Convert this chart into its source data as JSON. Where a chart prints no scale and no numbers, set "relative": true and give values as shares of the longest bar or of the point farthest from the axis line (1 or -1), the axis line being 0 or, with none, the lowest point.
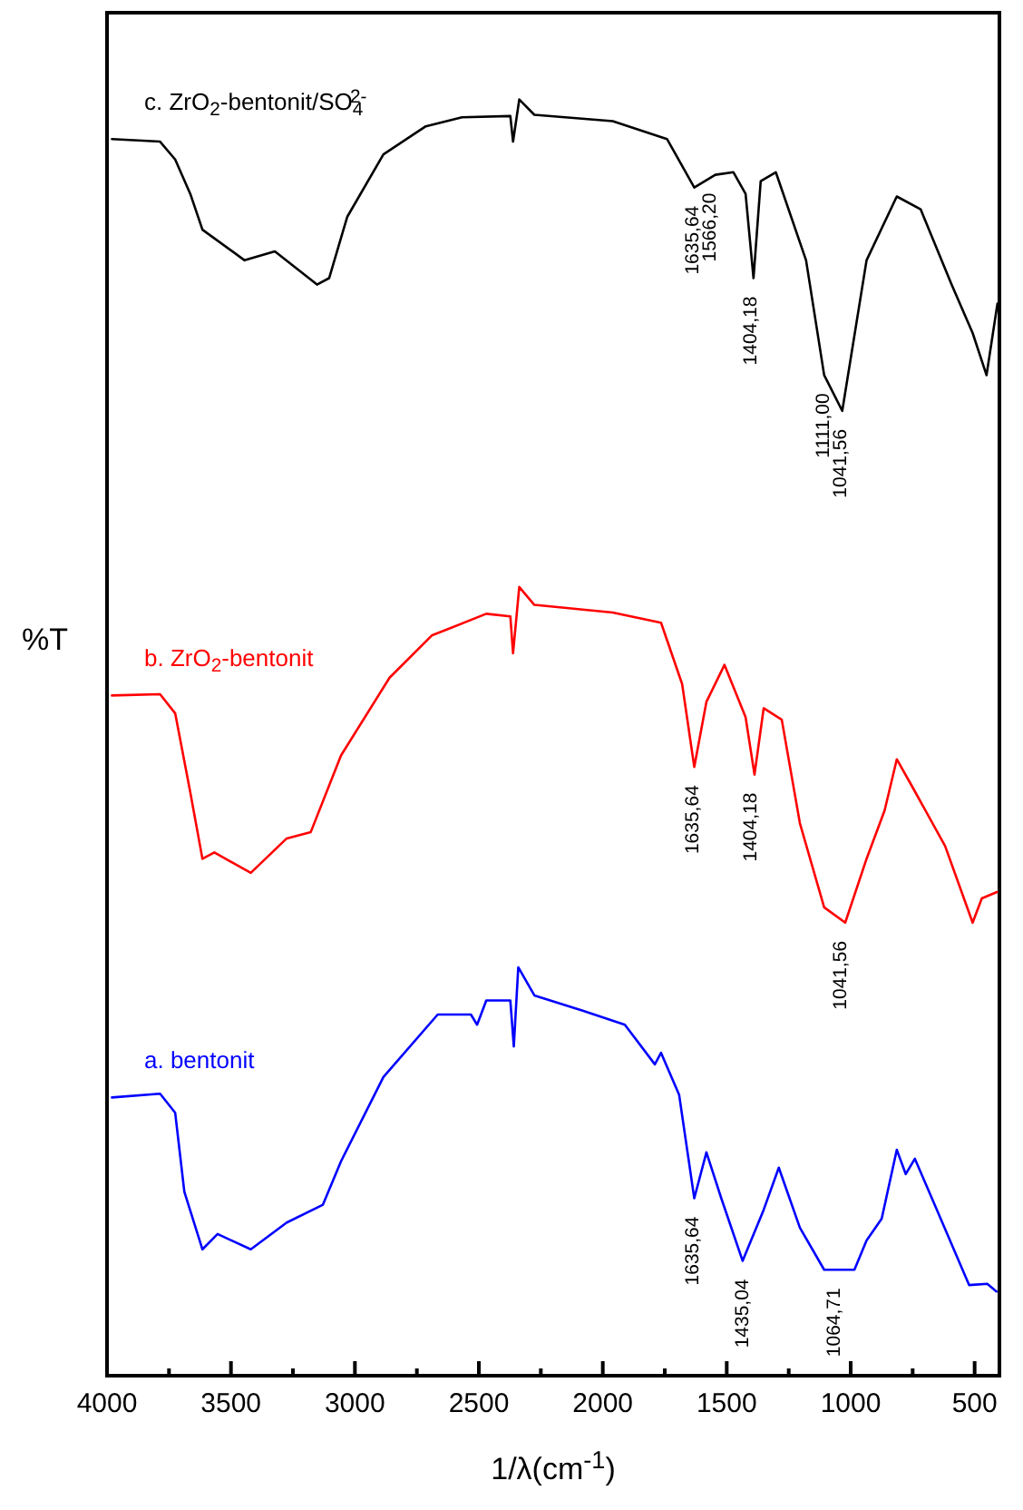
{
  "chart_data": {
    "type": "line",
    "relative": true,
    "ylabel": "%T",
    "xlabel": "1/λ(cm$^{-1}$)",
    "xlim": [
      4000,
      400
    ],
    "xticks": [
      4000,
      {
        "value": 3750,
        "label": null
      },
      3500,
      {
        "value": 3250,
        "label": null
      },
      3000,
      {
        "value": 2750,
        "label": null
      },
      2500,
      {
        "value": 2250,
        "label": null
      },
      2000,
      {
        "value": 1750,
        "label": null
      },
      1500,
      {
        "value": 1250,
        "label": null
      },
      1000,
      {
        "value": 750,
        "label": null
      },
      500
    ],
    "grid": false,
    "marker": "none",
    "line_style": "solid",
    "series": [
      {
        "name": "c. ZrO$_{2}$-bentonit/SO$_{4}$$^{2-}$",
        "color": "#000000",
        "x": [
          3980,
          3786,
          3725,
          3664,
          3615,
          3445,
          3323,
          3153,
          3104,
          3031,
          2885,
          2714,
          2568,
          2373,
          2362,
          2337,
          2276,
          1960,
          1741,
          1631,
          1546,
          1473,
          1424,
          1392,
          1363,
          1302,
          1180,
          1107,
          1034,
          936,
          814,
          718,
          593,
          508,
          452,
          408
        ],
        "values": [
          0.969,
          0.967,
          0.953,
          0.926,
          0.898,
          0.874,
          0.881,
          0.855,
          0.86,
          0.908,
          0.957,
          0.979,
          0.986,
          0.987,
          0.967,
          1.0,
          0.988,
          0.983,
          0.969,
          0.931,
          0.941,
          0.943,
          0.926,
          0.86,
          0.936,
          0.943,
          0.874,
          0.784,
          0.756,
          0.874,
          0.924,
          0.914,
          0.855,
          0.817,
          0.784,
          0.84
        ]
      },
      {
        "name": "b. ZrO$_{2}$-bentonit",
        "color": "#ff0000",
        "x": [
          3980,
          3786,
          3725,
          3664,
          3615,
          3567,
          3420,
          3275,
          3178,
          3056,
          2860,
          2690,
          2470,
          2373,
          2362,
          2337,
          2276,
          1960,
          1765,
          1680,
          1631,
          1582,
          1509,
          1424,
          1388,
          1351,
          1278,
          1205,
          1107,
          1022,
          936,
          863,
          814,
          753,
          619,
          508,
          471,
          410
        ],
        "values": [
          0.533,
          0.534,
          0.519,
          0.457,
          0.405,
          0.41,
          0.394,
          0.421,
          0.426,
          0.486,
          0.547,
          0.58,
          0.597,
          0.595,
          0.566,
          0.618,
          0.604,
          0.598,
          0.59,
          0.542,
          0.477,
          0.528,
          0.557,
          0.516,
          0.471,
          0.523,
          0.514,
          0.433,
          0.367,
          0.355,
          0.405,
          0.443,
          0.483,
          0.462,
          0.415,
          0.355,
          0.374,
          0.379
        ]
      },
      {
        "name": "a. bentonit",
        "color": "#0000ff",
        "x": [
          3980,
          3786,
          3725,
          3688,
          3615,
          3554,
          3420,
          3275,
          3129,
          3056,
          2885,
          2666,
          2532,
          2507,
          2470,
          2373,
          2359,
          2341,
          2276,
          2081,
          1911,
          1790,
          1765,
          1692,
          1631,
          1582,
          1522,
          1436,
          1351,
          1290,
          1205,
          1107,
          985,
          936,
          875,
          814,
          778,
          741,
          668,
          522,
          449,
          412
        ],
        "values": [
          0.218,
          0.221,
          0.206,
          0.144,
          0.099,
          0.111,
          0.099,
          0.12,
          0.134,
          0.168,
          0.234,
          0.283,
          0.283,
          0.275,
          0.294,
          0.294,
          0.258,
          0.32,
          0.298,
          0.286,
          0.275,
          0.244,
          0.253,
          0.22,
          0.139,
          0.175,
          0.139,
          0.09,
          0.13,
          0.163,
          0.116,
          0.083,
          0.083,
          0.106,
          0.123,
          0.177,
          0.158,
          0.17,
          0.137,
          0.071,
          0.072,
          0.066
        ]
      }
    ],
    "annotations": [
      {
        "text": "1635,64",
        "x": 1635.64,
        "y": 0.931
      },
      {
        "text": "1566,20",
        "x": 1566.2,
        "y": 0.941
      },
      {
        "text": "1404,18",
        "x": 1404.18,
        "y": 0.86
      },
      {
        "text": "1111,00",
        "x": 1111.0,
        "y": 0.784
      },
      {
        "text": "1041,56",
        "x": 1041.56,
        "y": 0.756
      },
      {
        "text": "1635,64",
        "x": 1635.64,
        "y": 0.477
      },
      {
        "text": "1404,18",
        "x": 1404.18,
        "y": 0.471
      },
      {
        "text": "1041,56",
        "x": 1041.56,
        "y": 0.355
      },
      {
        "text": "1635,64",
        "x": 1635.64,
        "y": 0.139
      },
      {
        "text": "1435,04",
        "x": 1435.04,
        "y": 0.09
      },
      {
        "text": "1064,71",
        "x": 1064.71,
        "y": 0.083
      }
    ]
  }
}
